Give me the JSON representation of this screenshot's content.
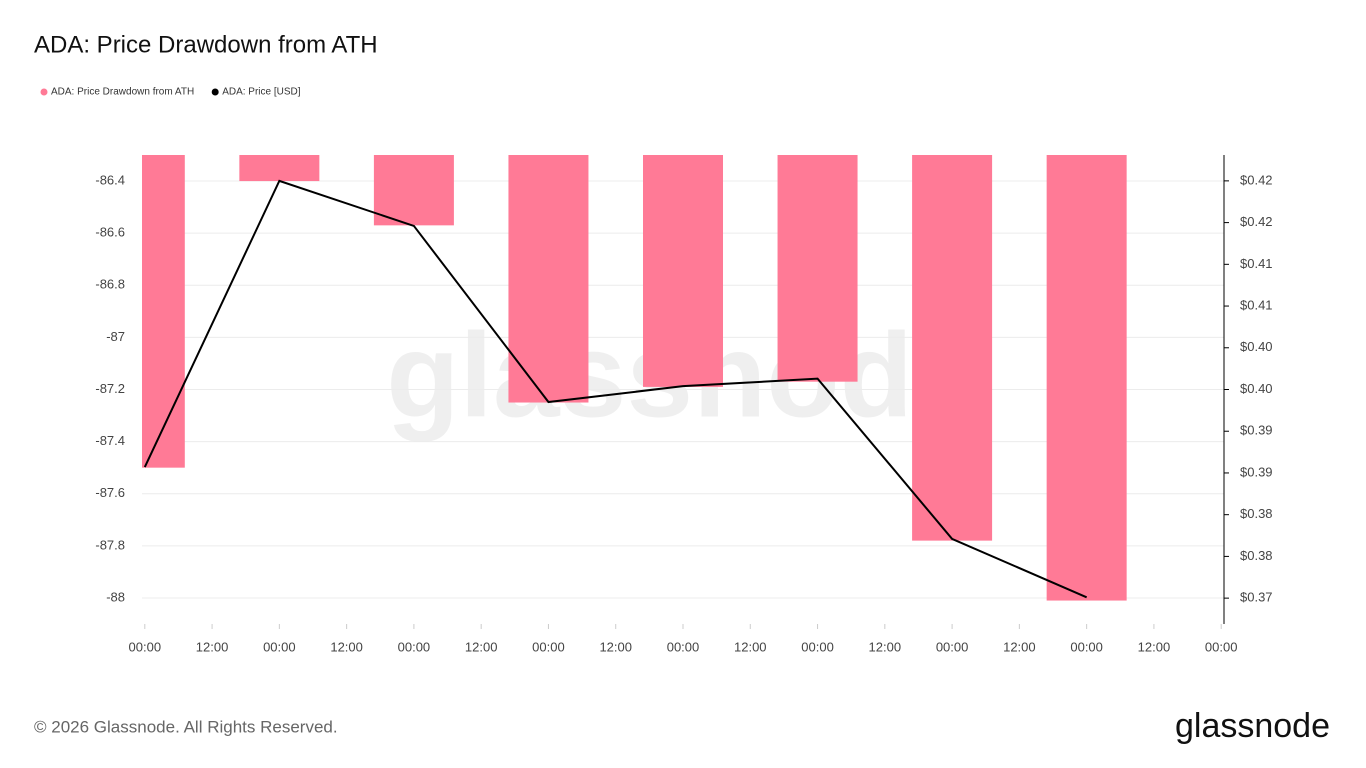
{
  "chart_data": {
    "type": "combo",
    "title": "ADA: Price Drawdown from ATH",
    "x": [
      0,
      24,
      48,
      72,
      96,
      120,
      144,
      168
    ],
    "xlim": [
      -0.5,
      192.5
    ],
    "xticks": [
      {
        "value": 0,
        "label": "00:00"
      },
      {
        "value": 12,
        "label": "12:00"
      },
      {
        "value": 24,
        "label": "00:00"
      },
      {
        "value": 36,
        "label": "12:00"
      },
      {
        "value": 48,
        "label": "00:00"
      },
      {
        "value": 60,
        "label": "12:00"
      },
      {
        "value": 72,
        "label": "00:00"
      },
      {
        "value": 84,
        "label": "12:00"
      },
      {
        "value": 96,
        "label": "00:00"
      },
      {
        "value": 108,
        "label": "12:00"
      },
      {
        "value": 120,
        "label": "00:00"
      },
      {
        "value": 132,
        "label": "12:00"
      },
      {
        "value": 144,
        "label": "00:00"
      },
      {
        "value": 156,
        "label": "12:00"
      },
      {
        "value": 168,
        "label": "00:00"
      },
      {
        "value": 180,
        "label": "12:00"
      },
      {
        "value": 192,
        "label": "00:00"
      }
    ],
    "ylim": [
      -88.1,
      -86.3
    ],
    "yticks": [
      -86.4,
      -86.6,
      -86.8,
      -87,
      -87.2,
      -87.4,
      -87.6,
      -87.8,
      -88
    ],
    "y2lim": [
      0.3669,
      0.4231
    ],
    "y2ticks": [
      {
        "value": 0.42,
        "label": "$0.42"
      },
      {
        "value": 0.415,
        "label": "$0.42"
      },
      {
        "value": 0.41,
        "label": "$0.41"
      },
      {
        "value": 0.405,
        "label": "$0.41"
      },
      {
        "value": 0.4,
        "label": "$0.40"
      },
      {
        "value": 0.395,
        "label": "$0.40"
      },
      {
        "value": 0.39,
        "label": "$0.39"
      },
      {
        "value": 0.385,
        "label": "$0.39"
      },
      {
        "value": 0.38,
        "label": "$0.38"
      },
      {
        "value": 0.375,
        "label": "$0.38"
      },
      {
        "value": 0.37,
        "label": "$0.37"
      }
    ],
    "grid": true,
    "series": [
      {
        "name": "ADA: Price Drawdown from ATH",
        "type": "bar",
        "color": "#ff7a96",
        "values": [
          -87.5,
          -86.4,
          -86.57,
          -87.25,
          -87.19,
          -87.17,
          -87.78,
          -88.01
        ]
      },
      {
        "name": "ADA: Price [USD]",
        "type": "line",
        "axis": "y2",
        "color": "#000000",
        "values": [
          0.3857,
          0.42,
          0.4146,
          0.3935,
          0.3954,
          0.3963,
          0.3771,
          0.3701
        ]
      }
    ],
    "watermark": "glassnode",
    "footer": "© 2026 Glassnode. All Rights Reserved.",
    "logo": "glassnode"
  }
}
